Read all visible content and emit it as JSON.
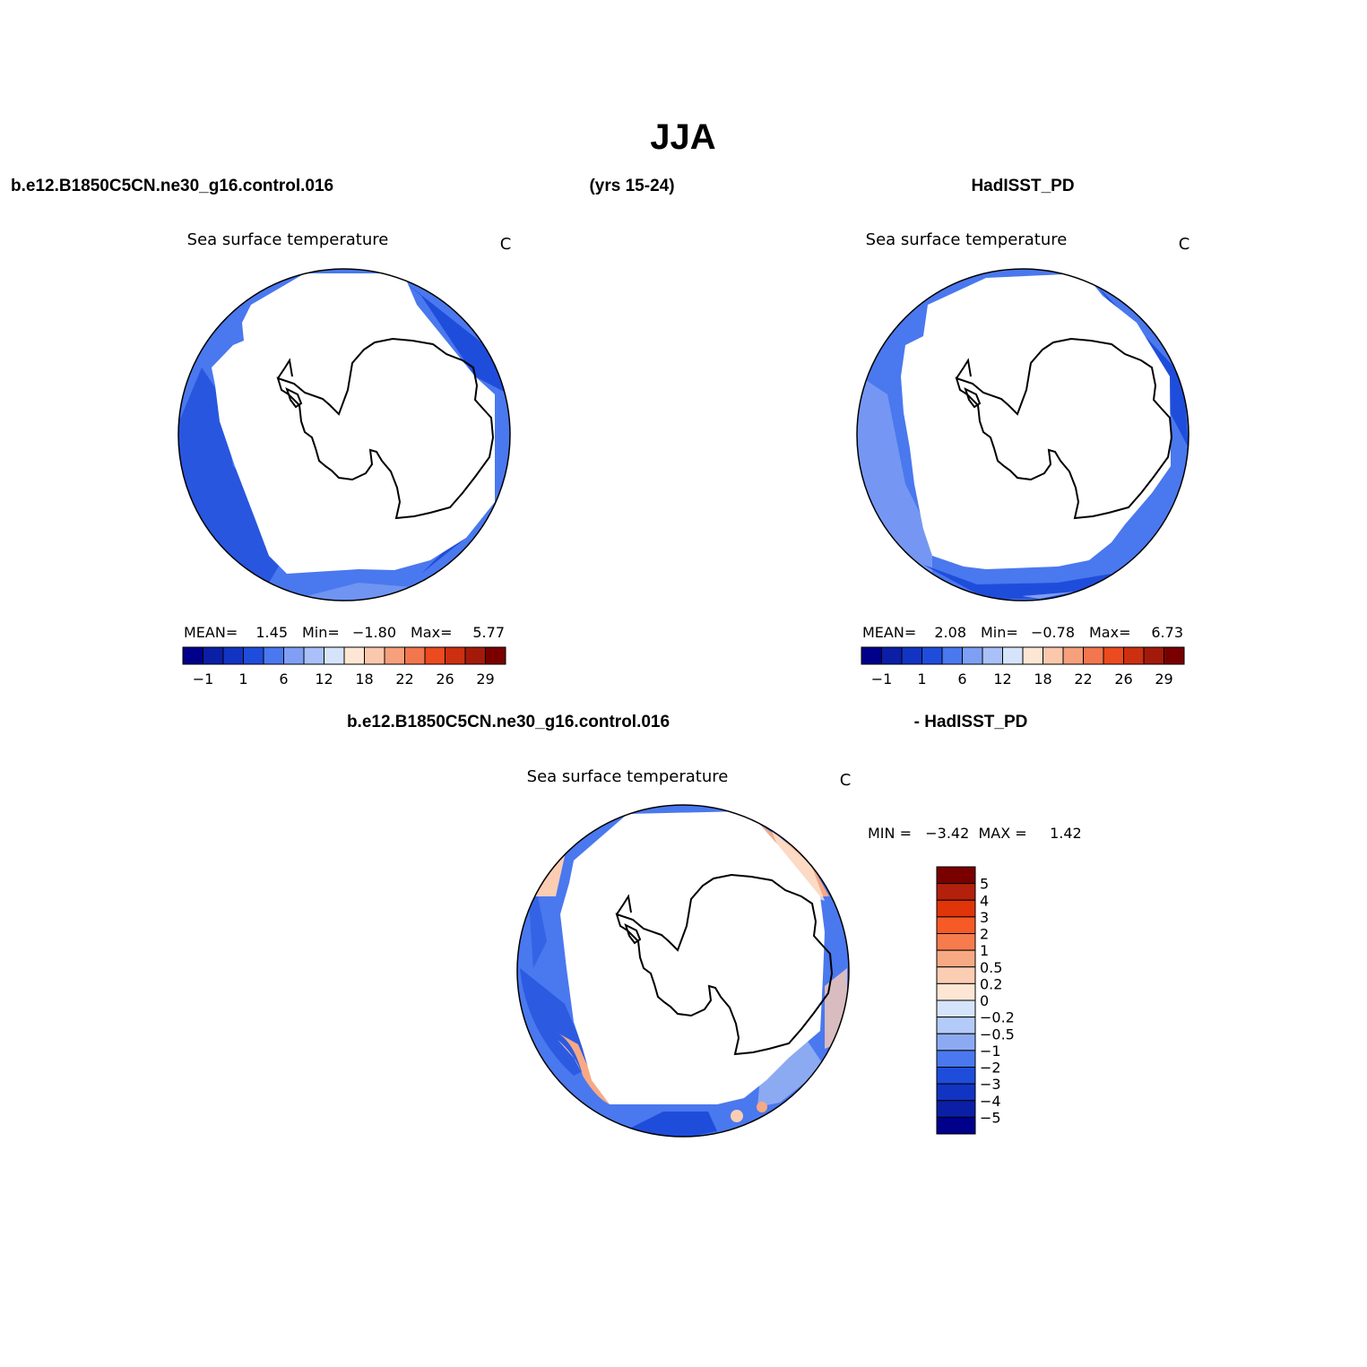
{
  "header": {
    "title": "JJA",
    "case_name": "b.e12.B1850C5CN.ne30_g16.control.016",
    "years": "(yrs 15-24)",
    "obs_name": "HadISST_PD"
  },
  "panels": [
    {
      "variable": "Sea surface temperature",
      "units": "C",
      "stats": {
        "mean_label": "MEAN=",
        "mean": "1.45",
        "min_label": "Min=",
        "min": "−1.80",
        "max_label": "Max=",
        "max": "5.77"
      }
    },
    {
      "variable": "Sea surface temperature",
      "units": "C",
      "stats": {
        "mean_label": "MEAN=",
        "mean": "2.08",
        "min_label": "Min=",
        "min": "−0.78",
        "max_label": "Max=",
        "max": "6.73"
      }
    }
  ],
  "diff": {
    "case_label": "b.e12.B1850C5CN.ne30_g16.control.016",
    "obs_label": "- HadISST_PD",
    "variable": "Sea surface temperature",
    "units": "C",
    "minmax": "MIN =   −3.42  MAX =     1.42"
  },
  "colorbar_main": {
    "colors": [
      "#00008b",
      "#0a1fa6",
      "#1234c2",
      "#1f4ddb",
      "#4a78ee",
      "#7f9ff4",
      "#a9c0f8",
      "#d6e4fb",
      "#fde6d4",
      "#fbc8ae",
      "#f6a07c",
      "#f2764e",
      "#ec4a1f",
      "#cc3010",
      "#a31a0b",
      "#7a0000"
    ],
    "labels": [
      "−1",
      "1",
      "6",
      "12",
      "18",
      "22",
      "26",
      "29"
    ]
  },
  "colorbar_diff": {
    "colors": [
      "#7a0000",
      "#b3200c",
      "#e03508",
      "#f65a26",
      "#f67c4e",
      "#f7a983",
      "#fbcdb3",
      "#fde6d4",
      "#d6e4fb",
      "#b3cbf8",
      "#8caaf2",
      "#4a78ee",
      "#1f4ddb",
      "#1234c2",
      "#0a1fa6",
      "#00008b"
    ],
    "labels": [
      "5",
      "4",
      "3",
      "2",
      "1",
      "0.5",
      "0.2",
      "0",
      "−0.2",
      "−0.5",
      "−1",
      "−2",
      "−3",
      "−4",
      "−5"
    ]
  }
}
